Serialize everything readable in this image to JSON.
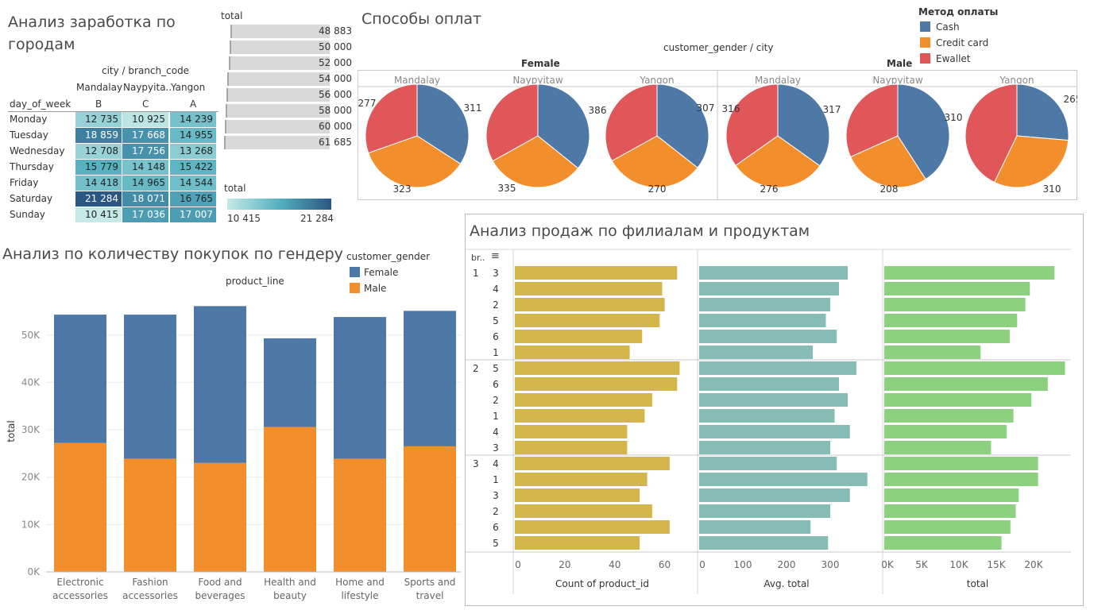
{
  "colors": {
    "cash": "#4e79a7",
    "credit": "#f28e2b",
    "ewallet": "#e15759",
    "female": "#4e79a7",
    "male": "#f28e2b",
    "count_bar": "#d4b54a",
    "avg_bar": "#86bcb6",
    "total_bar": "#8cd17d",
    "heat_low": "#b8e3e0",
    "heat_high": "#2a5783"
  },
  "heatmap": {
    "title": "Анализ заработка по городам",
    "col_header": "city / branch_code",
    "row_header": "day_of_week",
    "cities": [
      "Mandalay",
      "Naypyita..",
      "Yangon"
    ],
    "codes": [
      "B",
      "C",
      "A"
    ],
    "rows": [
      {
        "day": "Monday",
        "values": [
          12735,
          10925,
          14239
        ],
        "labels": [
          "12 735",
          "10 925",
          "14 239"
        ]
      },
      {
        "day": "Tuesday",
        "values": [
          18859,
          17668,
          14955
        ],
        "labels": [
          "18 859",
          "17 668",
          "14 955"
        ]
      },
      {
        "day": "Wednesday",
        "values": [
          12708,
          17756,
          13268
        ],
        "labels": [
          "12 708",
          "17 756",
          "13 268"
        ]
      },
      {
        "day": "Thursday",
        "values": [
          15779,
          14148,
          15422
        ],
        "labels": [
          "15 779",
          "14 148",
          "15 422"
        ]
      },
      {
        "day": "Friday",
        "values": [
          14418,
          14965,
          14544
        ],
        "labels": [
          "14 418",
          "14 965",
          "14 544"
        ]
      },
      {
        "day": "Saturday",
        "values": [
          21284,
          18071,
          16765
        ],
        "labels": [
          "21 284",
          "18 071",
          "16 765"
        ]
      },
      {
        "day": "Sunday",
        "values": [
          10415,
          17036,
          17007
        ],
        "labels": [
          "10 415",
          "17 036",
          "17 007"
        ]
      }
    ]
  },
  "total_legend": {
    "title": "total",
    "values": [
      "48 883",
      "50 000",
      "52 000",
      "54 000",
      "56 000",
      "58 000",
      "60 000",
      "61 685"
    ]
  },
  "color_legend": {
    "title": "total",
    "min_label": "10 415",
    "max_label": "21 284"
  },
  "payment": {
    "title": "Способы оплат",
    "header": "customer_gender / city",
    "legend_title": "Метод оплаты",
    "legend": [
      "Cash",
      "Credit card",
      "Ewallet"
    ],
    "genders": [
      "Female",
      "Male"
    ],
    "cities": [
      "Mandalay",
      "Naypyitaw",
      "Yangon",
      "Mandalay",
      "Naypyitaw",
      "Yangon"
    ]
  },
  "gender_chart": {
    "title": "Анализ по количеству покупок по гендеру",
    "header": "product_line",
    "legend_title": "customer_gender",
    "legend": [
      "Female",
      "Male"
    ],
    "ylabel": "total",
    "yticks": [
      "0K",
      "10K",
      "20K",
      "30K",
      "40K",
      "50K"
    ]
  },
  "branch_chart": {
    "title": "Анализ продаж по филиалам и продуктам",
    "header_left": "br..",
    "xlabels": [
      "Count of product_id",
      "Avg. total",
      "total"
    ],
    "ticks1": [
      "0",
      "20",
      "40",
      "60"
    ],
    "ticks2": [
      "0",
      "100",
      "200",
      "300"
    ],
    "ticks3": [
      "0K",
      "5K",
      "10K",
      "15K",
      "20K"
    ]
  },
  "chart_data": [
    {
      "type": "heatmap",
      "title": "Анализ заработка по городам",
      "x": [
        "Mandalay B",
        "Naypyitaw C",
        "Yangon A"
      ],
      "y": [
        "Monday",
        "Tuesday",
        "Wednesday",
        "Thursday",
        "Friday",
        "Saturday",
        "Sunday"
      ],
      "values": [
        [
          12735,
          10925,
          14239
        ],
        [
          18859,
          17668,
          14955
        ],
        [
          12708,
          17756,
          13268
        ],
        [
          15779,
          14148,
          15422
        ],
        [
          14418,
          14965,
          14544
        ],
        [
          21284,
          18071,
          16765
        ],
        [
          10415,
          17036,
          17007
        ]
      ]
    },
    {
      "type": "pie",
      "title": "Способы оплат",
      "categories": [
        "Cash",
        "Credit card",
        "Ewallet"
      ],
      "pies": [
        {
          "gender": "Female",
          "city": "Mandalay",
          "values": [
            311,
            323,
            277
          ]
        },
        {
          "gender": "Female",
          "city": "Naypyitaw",
          "values": [
            386,
            335,
            357
          ]
        },
        {
          "gender": "Female",
          "city": "Yangon",
          "values": [
            307,
            270,
            285
          ]
        },
        {
          "gender": "Male",
          "city": "Mandalay",
          "values": [
            317,
            276,
            316
          ]
        },
        {
          "gender": "Male",
          "city": "Naypyitaw",
          "values": [
            310,
            208,
            240
          ]
        },
        {
          "gender": "Male",
          "city": "Yangon",
          "values": [
            265,
            310,
            430
          ]
        }
      ]
    },
    {
      "type": "bar",
      "title": "Анализ по количеству покупок по гендеру",
      "categories": [
        "Electronic accessories",
        "Fashion accessories",
        "Food and beverages",
        "Health and beauty",
        "Home and lifestyle",
        "Sports and travel"
      ],
      "series": [
        {
          "name": "Male",
          "values": [
            27200,
            23900,
            23000,
            30600,
            23900,
            26500
          ]
        },
        {
          "name": "Female",
          "values": [
            27100,
            30400,
            33100,
            18700,
            29900,
            28600
          ]
        }
      ],
      "ylabel": "total",
      "ylim": [
        0,
        57000
      ]
    },
    {
      "type": "bar",
      "title": "Анализ продаж по филиалам и продуктам",
      "orientation": "horizontal",
      "groups": [
        {
          "branch": "1",
          "products": [
            "3",
            "4",
            "2",
            "5",
            "6",
            "1"
          ],
          "count": [
            65,
            59,
            60,
            58,
            51,
            46
          ],
          "avg": [
            340,
            320,
            300,
            290,
            315,
            260
          ],
          "total": [
            22800,
            19500,
            18900,
            17800,
            16800,
            12900
          ]
        },
        {
          "branch": "2",
          "products": [
            "5",
            "6",
            "2",
            "1",
            "4",
            "3"
          ],
          "count": [
            66,
            65,
            55,
            52,
            45,
            45
          ],
          "avg": [
            360,
            320,
            340,
            310,
            345,
            300
          ],
          "total": [
            24200,
            21900,
            19700,
            17300,
            16400,
            14300
          ]
        },
        {
          "branch": "3",
          "products": [
            "4",
            "1",
            "3",
            "2",
            "6",
            "5"
          ],
          "count": [
            62,
            53,
            50,
            55,
            62,
            50
          ],
          "avg": [
            315,
            385,
            345,
            300,
            255,
            295
          ],
          "total": [
            20600,
            20600,
            18000,
            17600,
            16900,
            15700
          ]
        }
      ],
      "xlabels": [
        "Count of product_id",
        "Avg. total",
        "total"
      ],
      "xlims": [
        [
          0,
          70
        ],
        [
          0,
          400
        ],
        [
          0,
          25000
        ]
      ]
    }
  ]
}
